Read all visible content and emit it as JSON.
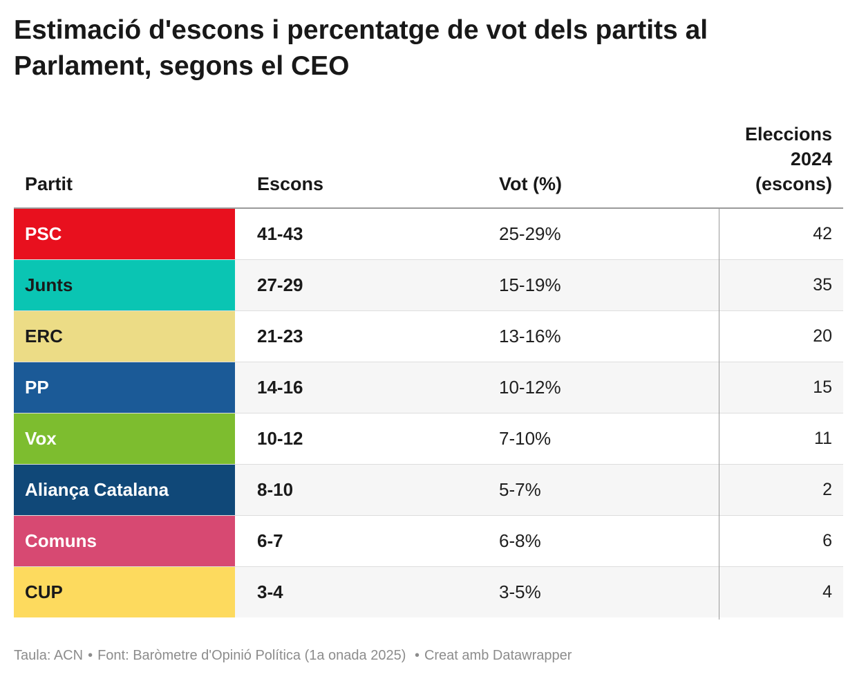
{
  "title": "Estimació d'escons i percentatge de vot dels partits al Parlament, segons el CEO",
  "chart_data": {
    "type": "table",
    "columns": [
      "Partit",
      "Escons",
      "Vot (%)",
      "Eleccions 2024 (escons)"
    ],
    "rows": [
      {
        "party": "PSC",
        "seats": "41-43",
        "vote": "25-29%",
        "seats_2024": 42,
        "color": "#e8101e",
        "text_color": "#ffffff"
      },
      {
        "party": "Junts",
        "seats": "27-29",
        "vote": "15-19%",
        "seats_2024": 35,
        "color": "#0ac5b3",
        "text_color": "#1a1a1a"
      },
      {
        "party": "ERC",
        "seats": "21-23",
        "vote": "13-16%",
        "seats_2024": 20,
        "color": "#ecdc86",
        "text_color": "#1a1a1a"
      },
      {
        "party": "PP",
        "seats": "14-16",
        "vote": "10-12%",
        "seats_2024": 15,
        "color": "#1b5a97",
        "text_color": "#ffffff"
      },
      {
        "party": "Vox",
        "seats": "10-12",
        "vote": "7-10%",
        "seats_2024": 11,
        "color": "#7dbd2f",
        "text_color": "#ffffff"
      },
      {
        "party": "Aliança Catalana",
        "seats": "8-10",
        "vote": "5-7%",
        "seats_2024": 2,
        "color": "#104878",
        "text_color": "#ffffff"
      },
      {
        "party": "Comuns",
        "seats": "6-7",
        "vote": "6-8%",
        "seats_2024": 6,
        "color": "#d74972",
        "text_color": "#ffffff"
      },
      {
        "party": "CUP",
        "seats": "3-4",
        "vote": "3-5%",
        "seats_2024": 4,
        "color": "#fdda5e",
        "text_color": "#1a1a1a"
      }
    ]
  },
  "header": {
    "party": "Partit",
    "seats": "Escons",
    "vote": "Vot (%)",
    "prev_line1": "Eleccions",
    "prev_line2": "2024",
    "prev_line3": "(escons)"
  },
  "footer": {
    "table_credit": "Taula: ACN",
    "source": "Font: Baròmetre d'Opinió Política (1a onada 2025)",
    "made_with": "Creat amb Datawrapper"
  }
}
